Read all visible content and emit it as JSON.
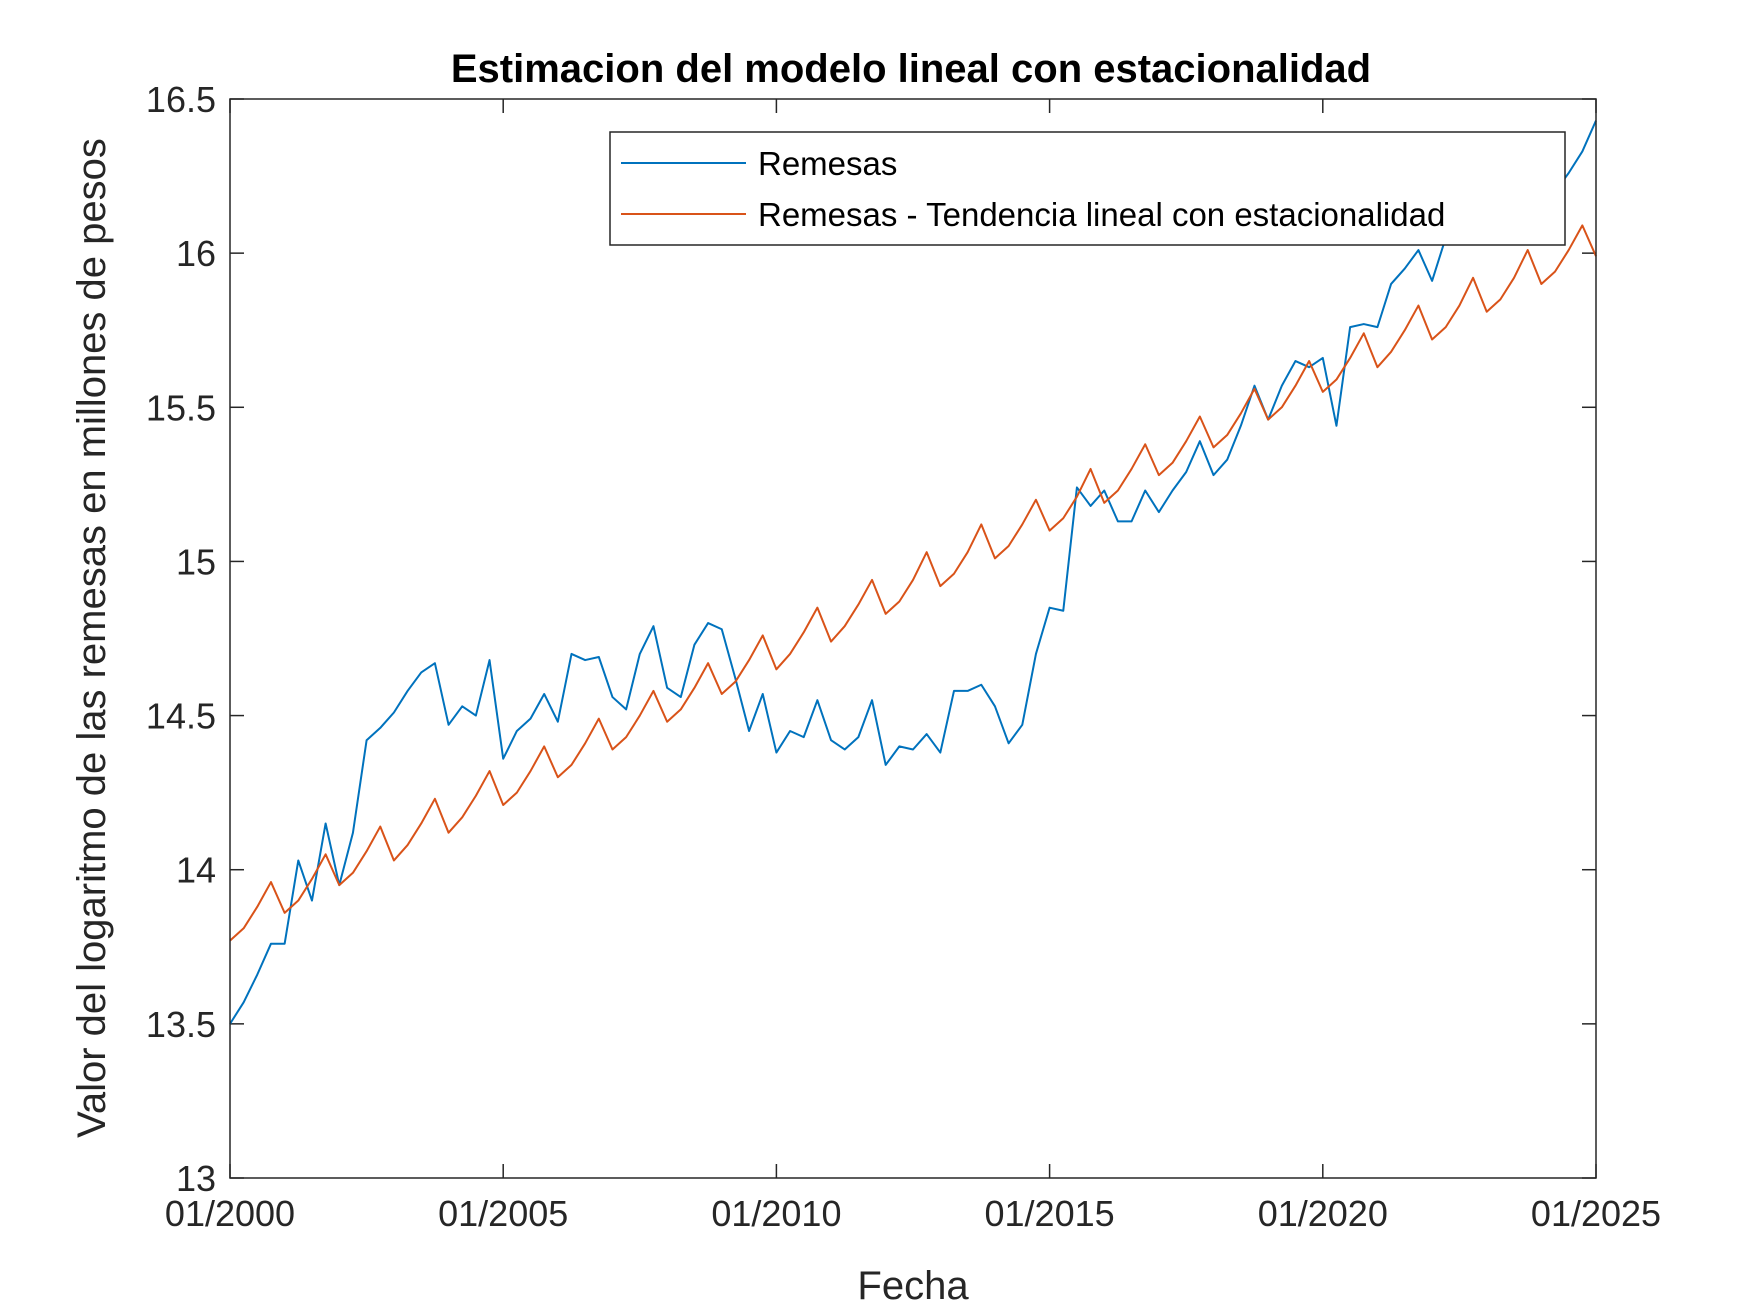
{
  "chart_data": {
    "type": "line",
    "title": "Estimacion del modelo lineal con estacionalidad",
    "xlabel": "Fecha",
    "ylabel": "Valor del logaritmo de las remesas en millones de pesos",
    "xlim": [
      "2000-01",
      "2025-01"
    ],
    "ylim": [
      13,
      16.5
    ],
    "grid": false,
    "legend_position": "top-right",
    "x_ticks": [
      "01/2000",
      "01/2005",
      "01/2010",
      "01/2015",
      "01/2020",
      "01/2025"
    ],
    "y_ticks": [
      "13",
      "13.5",
      "14",
      "14.5",
      "15",
      "15.5",
      "16",
      "16.5"
    ],
    "series": [
      {
        "name": "Remesas",
        "color": "#0072BD",
        "x": [
          "2000-01",
          "2000-04",
          "2000-07",
          "2000-10",
          "2001-01",
          "2001-04",
          "2001-07",
          "2001-10",
          "2002-01",
          "2002-04",
          "2002-07",
          "2002-10",
          "2003-01",
          "2003-04",
          "2003-07",
          "2003-10",
          "2004-01",
          "2004-04",
          "2004-07",
          "2004-10",
          "2005-01",
          "2005-04",
          "2005-07",
          "2005-10",
          "2006-01",
          "2006-04",
          "2006-07",
          "2006-10",
          "2007-01",
          "2007-04",
          "2007-07",
          "2007-10",
          "2008-01",
          "2008-04",
          "2008-07",
          "2008-10",
          "2009-01",
          "2009-04",
          "2009-07",
          "2009-10",
          "2010-01",
          "2010-04",
          "2010-07",
          "2010-10",
          "2011-01",
          "2011-04",
          "2011-07",
          "2011-10",
          "2012-01",
          "2012-04",
          "2012-07",
          "2012-10",
          "2013-01",
          "2013-04",
          "2013-07",
          "2013-10",
          "2014-01",
          "2014-04",
          "2014-07",
          "2014-10",
          "2015-01",
          "2015-04",
          "2015-07",
          "2015-10",
          "2016-01",
          "2016-04",
          "2016-07",
          "2016-10",
          "2017-01",
          "2017-04",
          "2017-07",
          "2017-10",
          "2018-01",
          "2018-04",
          "2018-07",
          "2018-10",
          "2019-01",
          "2019-04",
          "2019-07",
          "2019-10",
          "2020-01",
          "2020-04",
          "2020-07",
          "2020-10",
          "2021-01",
          "2021-04",
          "2021-07",
          "2021-10",
          "2022-01",
          "2022-04",
          "2022-07",
          "2022-10",
          "2023-01",
          "2023-04",
          "2023-07",
          "2023-10",
          "2024-01",
          "2024-04",
          "2024-07",
          "2024-10",
          "2025-01"
        ],
        "y": [
          13.5,
          13.57,
          13.66,
          13.76,
          13.76,
          14.03,
          13.9,
          14.15,
          13.95,
          14.12,
          14.42,
          14.46,
          14.51,
          14.58,
          14.64,
          14.67,
          14.47,
          14.53,
          14.5,
          14.68,
          14.36,
          14.45,
          14.49,
          14.57,
          14.48,
          14.7,
          14.68,
          14.69,
          14.56,
          14.52,
          14.7,
          14.79,
          14.59,
          14.56,
          14.73,
          14.8,
          14.78,
          14.62,
          14.45,
          14.57,
          14.38,
          14.45,
          14.43,
          14.55,
          14.42,
          14.39,
          14.43,
          14.55,
          14.34,
          14.4,
          14.39,
          14.44,
          14.38,
          14.58,
          14.58,
          14.6,
          14.53,
          14.41,
          14.47,
          14.7,
          14.85,
          14.84,
          15.24,
          15.18,
          15.23,
          15.13,
          15.13,
          15.23,
          15.16,
          15.23,
          15.29,
          15.39,
          15.28,
          15.33,
          15.44,
          15.57,
          15.46,
          15.57,
          15.65,
          15.63,
          15.66,
          15.44,
          15.76,
          15.77,
          15.76,
          15.9,
          15.95,
          16.01,
          15.91,
          16.05,
          16.12,
          16.15,
          16.13,
          16.11,
          16.11,
          16.11,
          16.17,
          16.2,
          16.26,
          16.33,
          16.43
        ]
      },
      {
        "name": "Remesas - Tendencia lineal con estacionalidad",
        "color": "#D95319",
        "x": [
          "2000-01",
          "2000-04",
          "2000-07",
          "2000-10",
          "2001-01",
          "2001-04",
          "2001-07",
          "2001-10",
          "2002-01",
          "2002-04",
          "2002-07",
          "2002-10",
          "2003-01",
          "2003-04",
          "2003-07",
          "2003-10",
          "2004-01",
          "2004-04",
          "2004-07",
          "2004-10",
          "2005-01",
          "2005-04",
          "2005-07",
          "2005-10",
          "2006-01",
          "2006-04",
          "2006-07",
          "2006-10",
          "2007-01",
          "2007-04",
          "2007-07",
          "2007-10",
          "2008-01",
          "2008-04",
          "2008-07",
          "2008-10",
          "2009-01",
          "2009-04",
          "2009-07",
          "2009-10",
          "2010-01",
          "2010-04",
          "2010-07",
          "2010-10",
          "2011-01",
          "2011-04",
          "2011-07",
          "2011-10",
          "2012-01",
          "2012-04",
          "2012-07",
          "2012-10",
          "2013-01",
          "2013-04",
          "2013-07",
          "2013-10",
          "2014-01",
          "2014-04",
          "2014-07",
          "2014-10",
          "2015-01",
          "2015-04",
          "2015-07",
          "2015-10",
          "2016-01",
          "2016-04",
          "2016-07",
          "2016-10",
          "2017-01",
          "2017-04",
          "2017-07",
          "2017-10",
          "2018-01",
          "2018-04",
          "2018-07",
          "2018-10",
          "2019-01",
          "2019-04",
          "2019-07",
          "2019-10",
          "2020-01",
          "2020-04",
          "2020-07",
          "2020-10",
          "2021-01",
          "2021-04",
          "2021-07",
          "2021-10",
          "2022-01",
          "2022-04",
          "2022-07",
          "2022-10",
          "2023-01",
          "2023-04",
          "2023-07",
          "2023-10",
          "2024-01",
          "2024-04",
          "2024-07",
          "2024-10",
          "2025-01"
        ],
        "y": [
          13.77,
          13.81,
          13.88,
          13.96,
          13.86,
          13.9,
          13.97,
          14.05,
          13.95,
          13.99,
          14.06,
          14.14,
          14.03,
          14.08,
          14.15,
          14.23,
          14.12,
          14.17,
          14.24,
          14.32,
          14.21,
          14.25,
          14.32,
          14.4,
          14.3,
          14.34,
          14.41,
          14.49,
          14.39,
          14.43,
          14.5,
          14.58,
          14.48,
          14.52,
          14.59,
          14.67,
          14.57,
          14.61,
          14.68,
          14.76,
          14.65,
          14.7,
          14.77,
          14.85,
          14.74,
          14.79,
          14.86,
          14.94,
          14.83,
          14.87,
          14.94,
          15.03,
          14.92,
          14.96,
          15.03,
          15.12,
          15.01,
          15.05,
          15.12,
          15.2,
          15.1,
          15.14,
          15.21,
          15.3,
          15.19,
          15.23,
          15.3,
          15.38,
          15.28,
          15.32,
          15.39,
          15.47,
          15.37,
          15.41,
          15.48,
          15.56,
          15.46,
          15.5,
          15.57,
          15.65,
          15.55,
          15.59,
          15.66,
          15.74,
          15.63,
          15.68,
          15.75,
          15.83,
          15.72,
          15.76,
          15.83,
          15.92,
          15.81,
          15.85,
          15.92,
          16.01,
          15.9,
          15.94,
          16.01,
          16.09,
          15.99
        ]
      }
    ]
  }
}
